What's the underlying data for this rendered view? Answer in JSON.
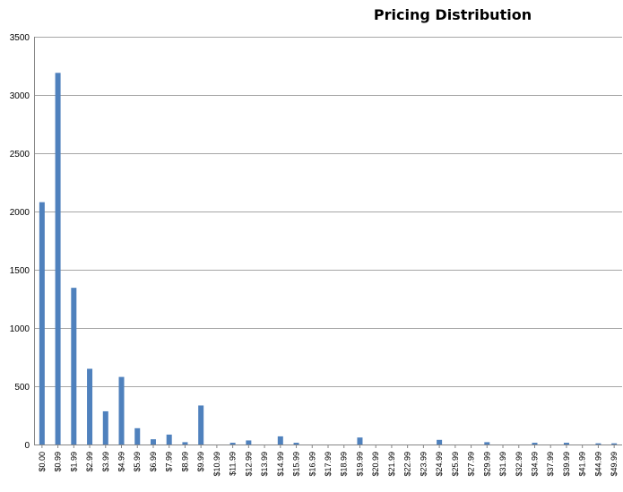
{
  "chart_data": {
    "type": "bar",
    "title": "Pricing Distribution",
    "xlabel": "",
    "ylabel": "",
    "ylim": [
      0,
      3500
    ],
    "yticks": [
      0,
      500,
      1000,
      1500,
      2000,
      2500,
      3000,
      3500
    ],
    "grid": true,
    "legend": "none",
    "bar_color": "#4f81bd",
    "grid_color": "#a6a6a6",
    "categories": [
      "$0.00",
      "$0.99",
      "$1.99",
      "$2.99",
      "$3.99",
      "$4.99",
      "$5.99",
      "$6.99",
      "$7.99",
      "$8.99",
      "$9.99",
      "$10.99",
      "$11.99",
      "$12.99",
      "$13.99",
      "$14.99",
      "$15.99",
      "$16.99",
      "$17.99",
      "$18.99",
      "$19.99",
      "$20.99",
      "$21.99",
      "$22.99",
      "$23.99",
      "$24.99",
      "$25.99",
      "$27.99",
      "$29.99",
      "$31.99",
      "$32.99",
      "$34.99",
      "$37.99",
      "$39.99",
      "$41.99",
      "$44.99",
      "$49.99"
    ],
    "values": [
      2080,
      3190,
      1345,
      650,
      285,
      580,
      140,
      45,
      85,
      20,
      335,
      0,
      15,
      35,
      0,
      70,
      15,
      0,
      0,
      0,
      60,
      0,
      0,
      0,
      0,
      40,
      0,
      0,
      20,
      0,
      0,
      15,
      0,
      15,
      0,
      10,
      10
    ]
  }
}
